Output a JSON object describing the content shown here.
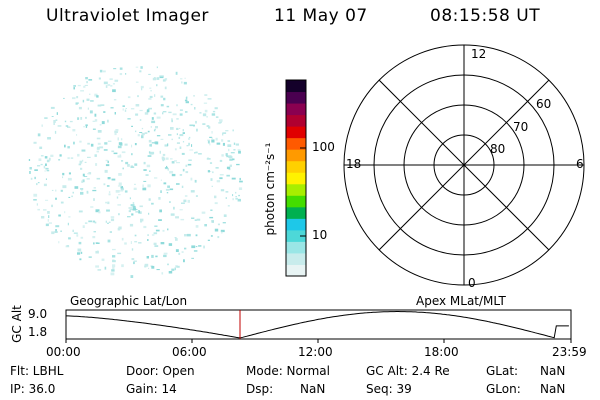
{
  "header": {
    "instrument": "Ultraviolet Imager",
    "date": "11 May 07",
    "time": "08:15:58 UT"
  },
  "colorbar": {
    "unit_label": "photon cm⁻²s⁻¹",
    "ticks": [
      "100",
      "10"
    ],
    "colors": [
      "#e8f4f4",
      "#c8ecec",
      "#9ae6e6",
      "#4dd8d8",
      "#1ec8e8",
      "#00b050",
      "#44dd00",
      "#a8ee00",
      "#fff200",
      "#ffd000",
      "#ff9a00",
      "#ff5a00",
      "#e00000",
      "#b00030",
      "#8a0050",
      "#4a0050",
      "#14002a"
    ]
  },
  "polar_grid": {
    "mlt_labels": {
      "top": "12",
      "left": "18",
      "right": "6",
      "bottom": "0"
    },
    "lat_labels": [
      "60",
      "70",
      "80"
    ]
  },
  "timeline": {
    "ylabel": "GC Alt",
    "ymax": "9.0",
    "ymin": "1.8",
    "left_caption": "Geographic Lat/Lon",
    "right_caption": "Apex MLat/MLT",
    "ticks": [
      "00:00",
      "06:00",
      "12:00",
      "18:00",
      "23:59"
    ],
    "marker_time_hours": 8.27
  },
  "info": {
    "flt": "Flt: LBHL",
    "ip": "IP: 36.0",
    "door": "Door: Open",
    "gain": "Gain: 14",
    "mode": "Mode: Normal",
    "dsp_label": "Dsp:",
    "dsp_value": "NaN",
    "gcalt": "GC Alt: 2.4 Re",
    "seq": "Seq: 39",
    "glat_label": "GLat:",
    "glat_value": "NaN",
    "glon_label": "GLon:",
    "glon_value": "NaN"
  }
}
